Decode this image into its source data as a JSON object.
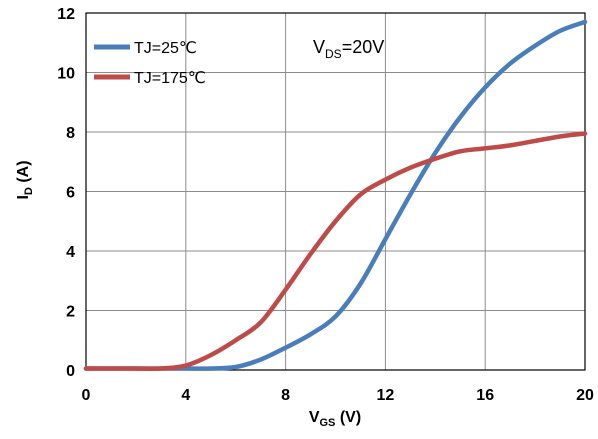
{
  "chart_data": {
    "type": "line",
    "xlabel": {
      "main": "V",
      "sub": "GS",
      "rest": " (V)"
    },
    "ylabel": {
      "main": "I",
      "sub": "D",
      "rest": " (A)"
    },
    "xlim": [
      0,
      20
    ],
    "ylim": [
      0,
      12
    ],
    "xticks": [
      0,
      4,
      8,
      12,
      16,
      20
    ],
    "yticks": [
      0,
      2,
      4,
      6,
      8,
      10,
      12
    ],
    "grid": true,
    "legend_position": "top-left",
    "annotation": {
      "main": "V",
      "sub": "DS",
      "rest": "=20V"
    },
    "series": [
      {
        "name": "TJ=25℃",
        "color": "#4a7ebb",
        "x": [
          0,
          1,
          2,
          3,
          4,
          5,
          6,
          7,
          8,
          9,
          10,
          11,
          12,
          13,
          14,
          15,
          16,
          17,
          18,
          19,
          20
        ],
        "y": [
          0.05,
          0.05,
          0.05,
          0.05,
          0.05,
          0.05,
          0.1,
          0.35,
          0.75,
          1.2,
          1.8,
          2.9,
          4.4,
          5.9,
          7.3,
          8.5,
          9.5,
          10.3,
          10.9,
          11.4,
          11.7
        ]
      },
      {
        "name": "TJ=175℃",
        "color": "#be4b48",
        "x": [
          0,
          1,
          2,
          3,
          4,
          5,
          6,
          7,
          8,
          9,
          10,
          11,
          12,
          13,
          14,
          15,
          16,
          17,
          18,
          19,
          20
        ],
        "y": [
          0.05,
          0.05,
          0.05,
          0.05,
          0.15,
          0.5,
          1.0,
          1.6,
          2.7,
          3.9,
          5.0,
          5.9,
          6.4,
          6.8,
          7.1,
          7.35,
          7.45,
          7.55,
          7.7,
          7.85,
          7.95
        ]
      }
    ]
  }
}
